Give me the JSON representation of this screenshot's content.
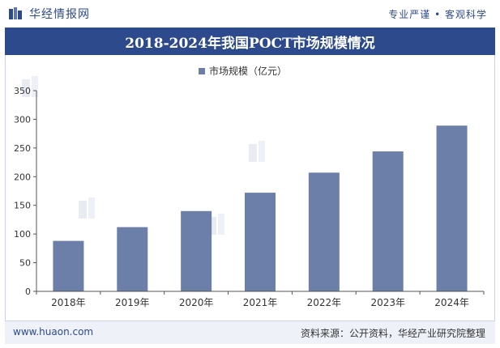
{
  "header": {
    "brand": "华经情报网",
    "slogan": "专业严谨 • 客观科学"
  },
  "footer": {
    "site": "www.huaon.com",
    "source": "资料来源：公开资料，华经产业研究院整理"
  },
  "colors": {
    "primary": "#2c4a8c",
    "bar": "#6b7fa9"
  },
  "chart_data": {
    "type": "bar",
    "title": "2018-2024年我国POCT市场规模情况",
    "categories": [
      "2018年",
      "2019年",
      "2020年",
      "2021年",
      "2022年",
      "2023年",
      "2024年"
    ],
    "series": [
      {
        "name": "市场规模（亿元）",
        "values": [
          88,
          112,
          140,
          172,
          207,
          244,
          289
        ]
      }
    ],
    "ylim": [
      0,
      350
    ],
    "yticks": [
      0,
      50,
      100,
      150,
      200,
      250,
      300,
      350
    ],
    "grid": false,
    "legend": "top-center"
  }
}
